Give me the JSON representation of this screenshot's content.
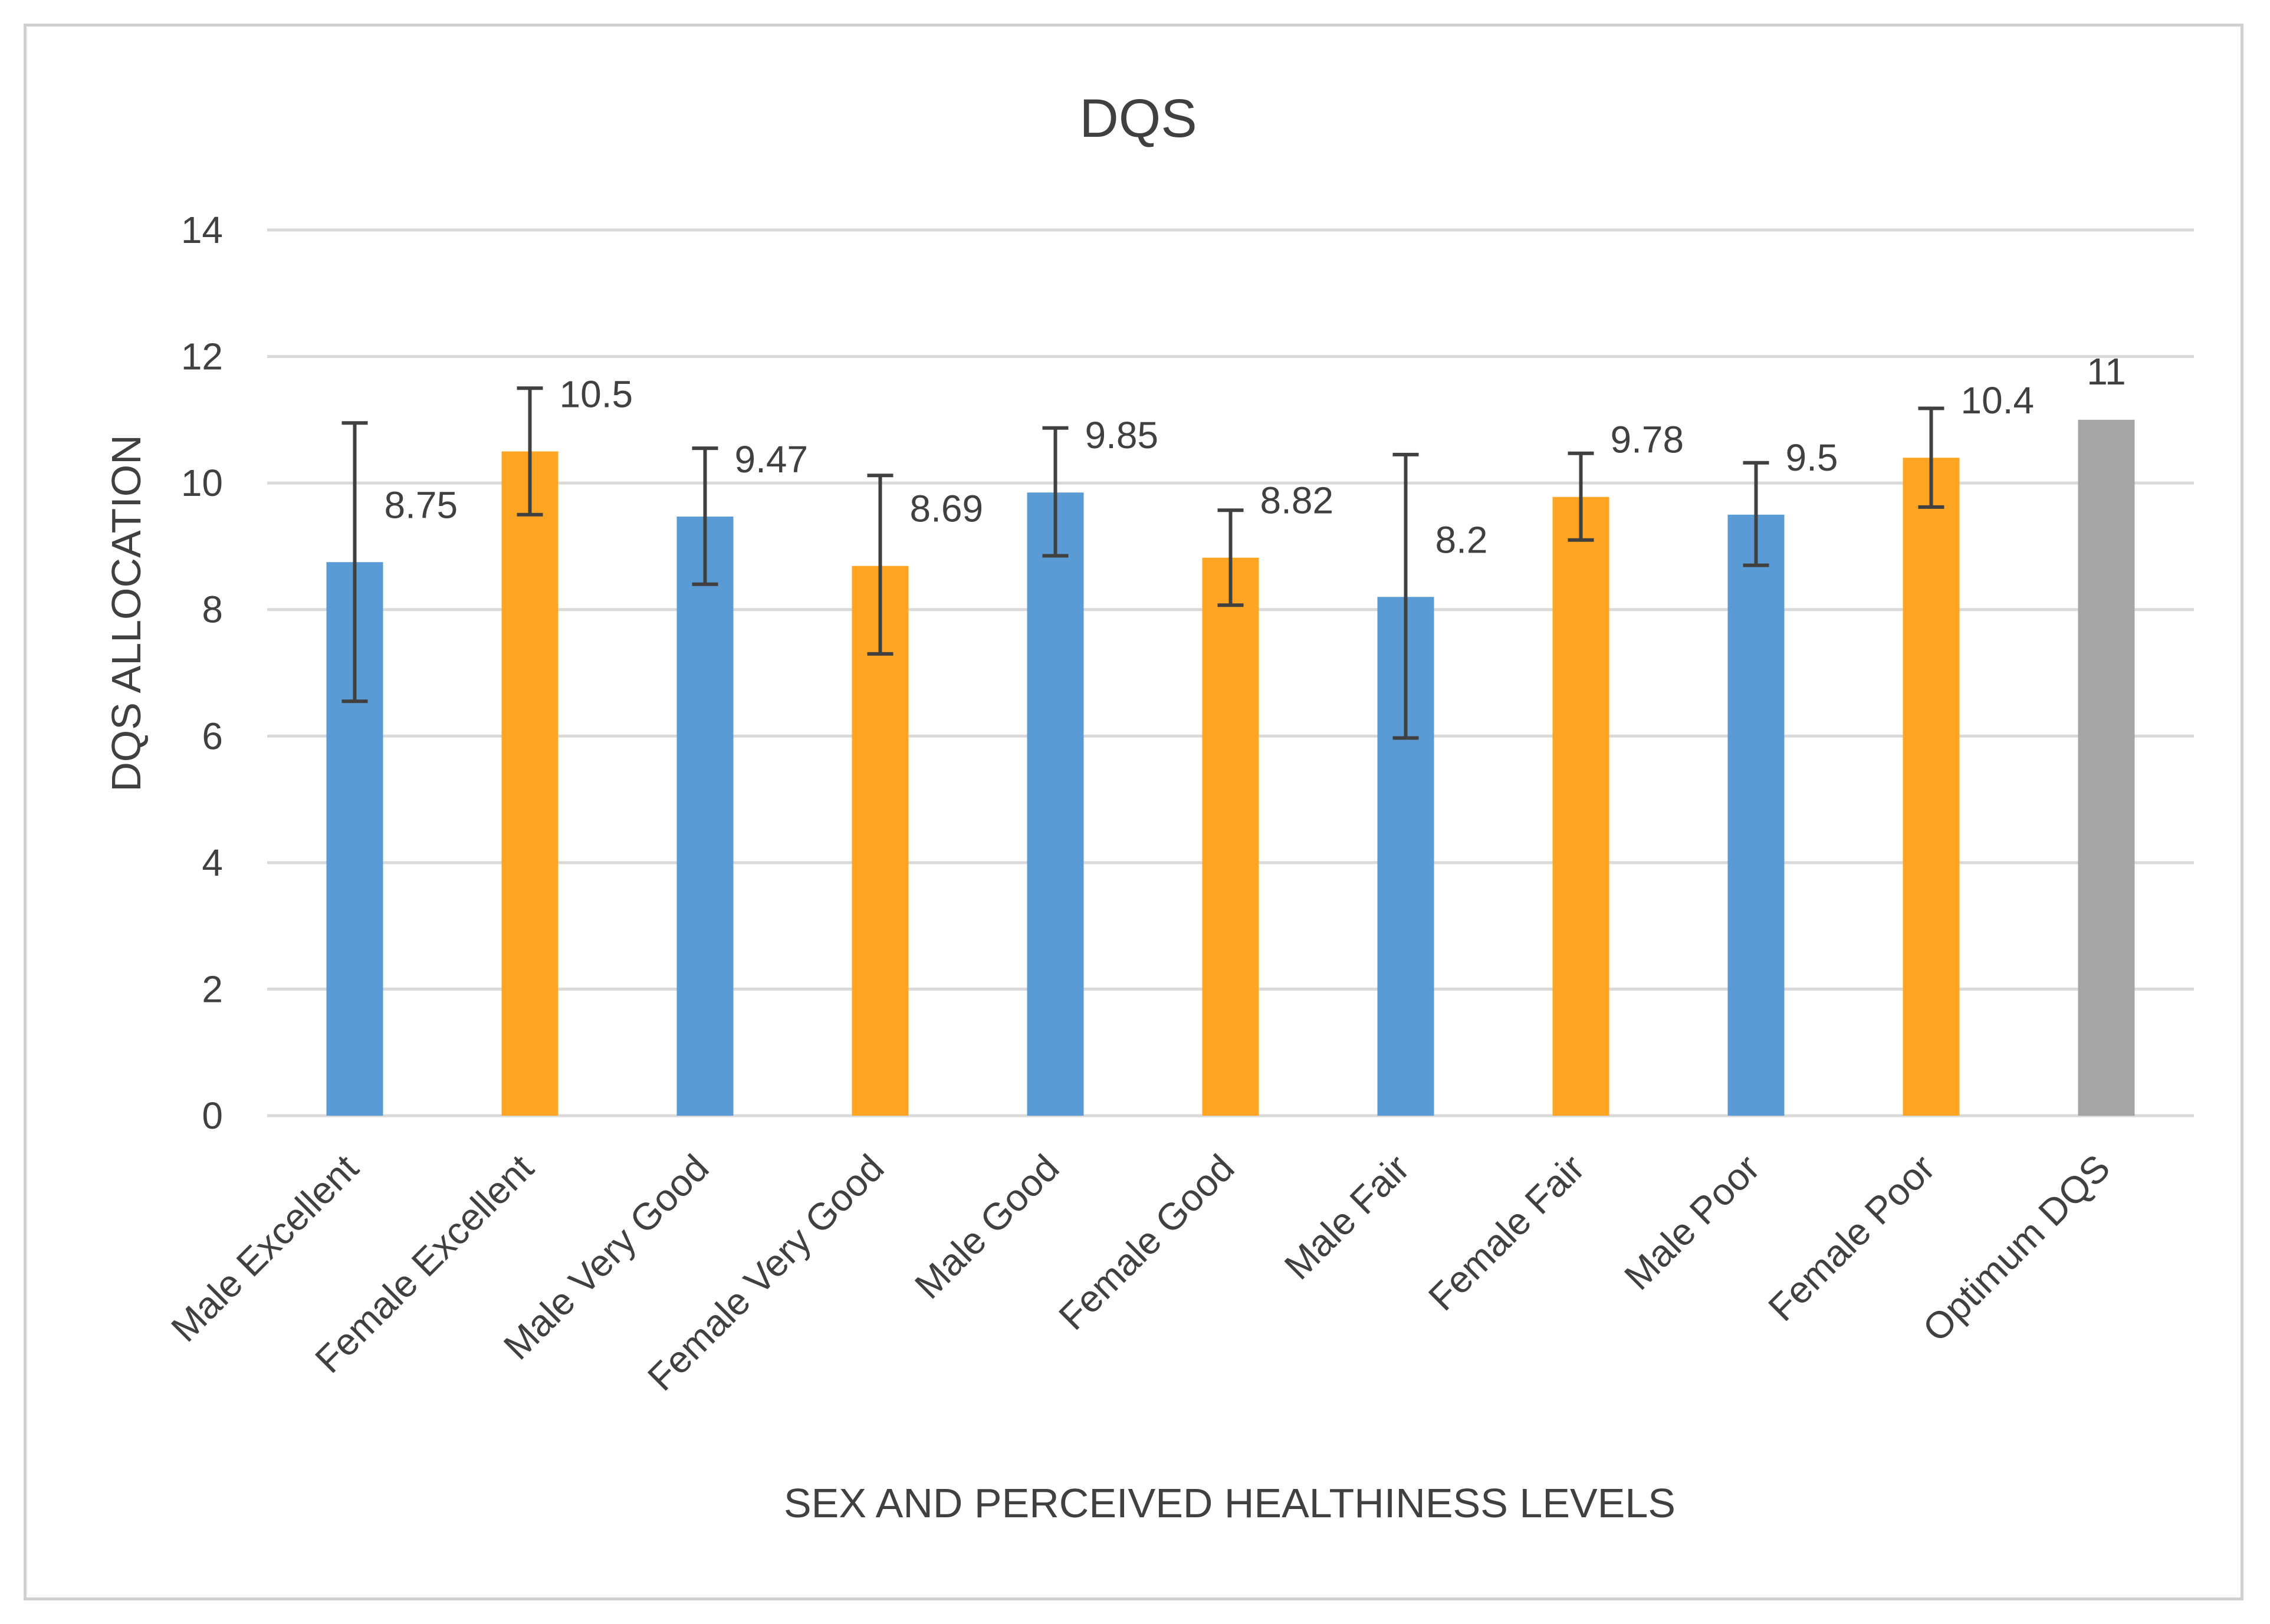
{
  "chart_data": {
    "type": "bar",
    "title": "DQS",
    "xlabel": "SEX AND PERCEIVED HEALTHINESS LEVELS",
    "ylabel": "DQS ALLOCATION",
    "ylim": [
      0,
      14
    ],
    "yticks": [
      "0",
      "2",
      "4",
      "6",
      "8",
      "10",
      "12",
      "14"
    ],
    "grid": true,
    "legend": "none",
    "categories": [
      "Male Excellent",
      "Female Excellent",
      "Male Very Good",
      "Female Very Good",
      "Male Good",
      "Female Good",
      "Male Fair",
      "Female Fair",
      "Male Poor",
      "Female Poor",
      "Optimum DQS"
    ],
    "values": [
      8.75,
      10.5,
      9.47,
      8.69,
      9.85,
      8.82,
      8.2,
      9.78,
      9.5,
      10.4,
      11
    ],
    "value_labels": [
      "8.75",
      "10.5",
      "9.47",
      "8.69",
      "9.85",
      "8.82",
      "8.2",
      "9.78",
      "9.5",
      "10.4",
      "11"
    ],
    "error_low": [
      6.55,
      9.5,
      8.4,
      7.3,
      8.85,
      8.07,
      5.97,
      9.1,
      8.7,
      9.62,
      null
    ],
    "error_high": [
      10.95,
      11.5,
      10.55,
      10.12,
      10.87,
      9.57,
      10.45,
      10.47,
      10.32,
      11.18,
      null
    ],
    "bar_colors": [
      "#5b9bd5",
      "#ffa524",
      "#5b9bd5",
      "#ffa524",
      "#5b9bd5",
      "#ffa524",
      "#5b9bd5",
      "#ffa524",
      "#5b9bd5",
      "#ffa524",
      "#a5a5a5"
    ]
  },
  "colors": {
    "male": "#5b9bd5",
    "female": "#ffa524",
    "optimum": "#a5a5a5",
    "gridline": "#d9d9d9",
    "text": "#404040",
    "error_bar": "#404040"
  }
}
